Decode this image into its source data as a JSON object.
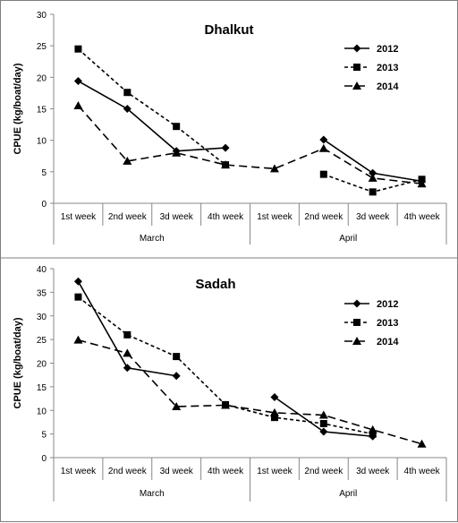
{
  "chart_data": [
    {
      "type": "line",
      "title": "Dhalkut",
      "ylabel": "CPUE (kg/boat/day)",
      "xlabel": "",
      "ylim": [
        0,
        30
      ],
      "yticks": [
        0,
        5,
        10,
        15,
        20,
        25,
        30
      ],
      "legend_position": "top-right",
      "grid": false,
      "categories": [
        "1st week",
        "2nd week",
        "3d week",
        "4th week",
        "1st week",
        "2nd week",
        "3d week",
        "4th week"
      ],
      "groups": [
        {
          "label": "March",
          "weeks": [
            "1st week",
            "2nd week",
            "3d week",
            "4th week"
          ]
        },
        {
          "label": "April",
          "weeks": [
            "1st week",
            "2nd week",
            "3d week",
            "4th week"
          ]
        }
      ],
      "series": [
        {
          "name": "2012",
          "marker": "diamond",
          "dash": "solid",
          "values": [
            19.4,
            15.0,
            8.3,
            8.8,
            null,
            10.1,
            4.8,
            3.5
          ]
        },
        {
          "name": "2013",
          "marker": "square",
          "dash": "short",
          "values": [
            24.5,
            17.6,
            12.2,
            6.1,
            null,
            4.6,
            1.8,
            3.8
          ]
        },
        {
          "name": "2014",
          "marker": "triangle",
          "dash": "long",
          "values": [
            15.5,
            6.7,
            8.0,
            6.1,
            5.5,
            8.7,
            4.0,
            3.1
          ]
        }
      ]
    },
    {
      "type": "line",
      "title": "Sadah",
      "ylabel": "CPUE (kg/boat/day)",
      "xlabel": "",
      "ylim": [
        0,
        40
      ],
      "yticks": [
        0,
        5,
        10,
        15,
        20,
        25,
        30,
        35,
        40
      ],
      "legend_position": "top-right",
      "grid": false,
      "categories": [
        "1st week",
        "2nd week",
        "3d week",
        "4th week",
        "1st week",
        "2nd week",
        "3d week",
        "4th week"
      ],
      "groups": [
        {
          "label": "March",
          "weeks": [
            "1st week",
            "2nd week",
            "3d week",
            "4th week"
          ]
        },
        {
          "label": "April",
          "weeks": [
            "1st week",
            "2nd week",
            "3d week",
            "4th week"
          ]
        }
      ],
      "series": [
        {
          "name": "2012",
          "marker": "diamond",
          "dash": "solid",
          "values": [
            37.3,
            19.0,
            17.3,
            null,
            12.8,
            5.5,
            4.5,
            null
          ]
        },
        {
          "name": "2013",
          "marker": "square",
          "dash": "short",
          "values": [
            34.0,
            26.0,
            21.4,
            11.2,
            8.5,
            7.2,
            5.0,
            null
          ]
        },
        {
          "name": "2014",
          "marker": "triangle",
          "dash": "long",
          "values": [
            24.9,
            22.1,
            10.8,
            11.1,
            9.5,
            9.0,
            5.9,
            2.9
          ]
        }
      ]
    }
  ]
}
